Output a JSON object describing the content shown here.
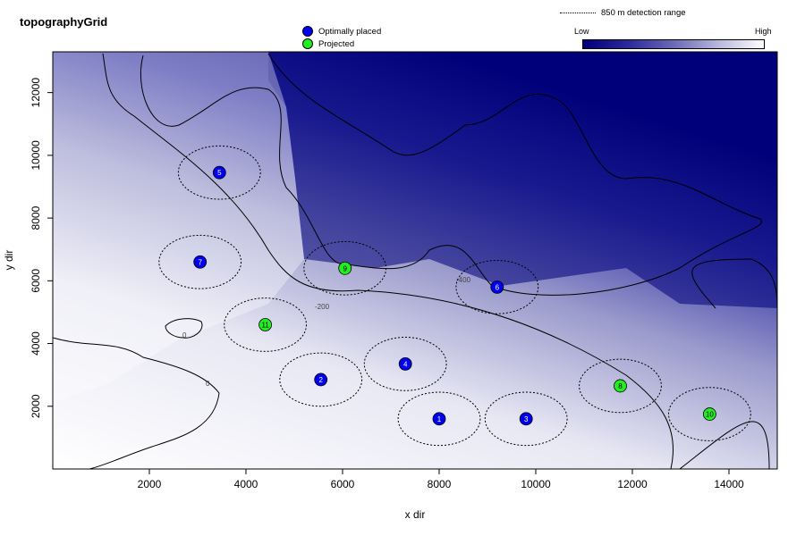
{
  "chart_data": {
    "type": "scatter",
    "title": "topographyGrid",
    "xlabel": "x dir",
    "ylabel": "y dir",
    "xlim": [
      0,
      15000
    ],
    "ylim": [
      0,
      13300
    ],
    "x_ticks": [
      2000,
      4000,
      6000,
      8000,
      10000,
      12000,
      14000
    ],
    "y_ticks": [
      2000,
      4000,
      6000,
      8000,
      10000,
      12000
    ],
    "detection_range_m": 850,
    "colorbar": {
      "low_label": "Low",
      "high_label": "High",
      "low_color": "#00007a",
      "high_color": "#ffffff"
    },
    "contour_labels": [
      "-200",
      "-400",
      "0",
      "0"
    ],
    "legend": {
      "optimal": "Optimally placed",
      "projected": "Projected",
      "range": "850 m detection range"
    },
    "series": [
      {
        "name": "Optimally placed",
        "color": "#0000ee",
        "points": [
          {
            "id": "1",
            "x": 8000,
            "y": 1600
          },
          {
            "id": "2",
            "x": 5550,
            "y": 2850
          },
          {
            "id": "3",
            "x": 9800,
            "y": 1600
          },
          {
            "id": "4",
            "x": 7300,
            "y": 3350
          },
          {
            "id": "5",
            "x": 3450,
            "y": 9450
          },
          {
            "id": "6",
            "x": 9200,
            "y": 5800
          },
          {
            "id": "7",
            "x": 3050,
            "y": 6600
          }
        ]
      },
      {
        "name": "Projected",
        "color": "#22ee22",
        "points": [
          {
            "id": "8",
            "x": 11750,
            "y": 2650
          },
          {
            "id": "9",
            "x": 6050,
            "y": 6400
          },
          {
            "id": "10",
            "x": 13600,
            "y": 1750
          },
          {
            "id": "11",
            "x": 4400,
            "y": 4600
          }
        ]
      }
    ]
  }
}
